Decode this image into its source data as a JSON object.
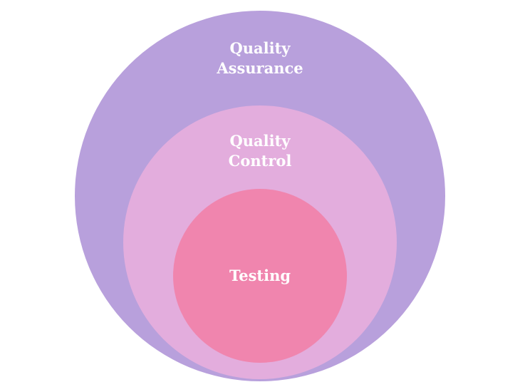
{
  "diagram": {
    "circles": [
      {
        "lines": [
          "Quality",
          "Assurance"
        ],
        "color": "#b8a0dc"
      },
      {
        "lines": [
          "Quality",
          "Control"
        ],
        "color": "#e3addd"
      },
      {
        "lines": [
          "Testing"
        ],
        "color": "#f085ae"
      }
    ],
    "label_color": "#ffffff"
  }
}
